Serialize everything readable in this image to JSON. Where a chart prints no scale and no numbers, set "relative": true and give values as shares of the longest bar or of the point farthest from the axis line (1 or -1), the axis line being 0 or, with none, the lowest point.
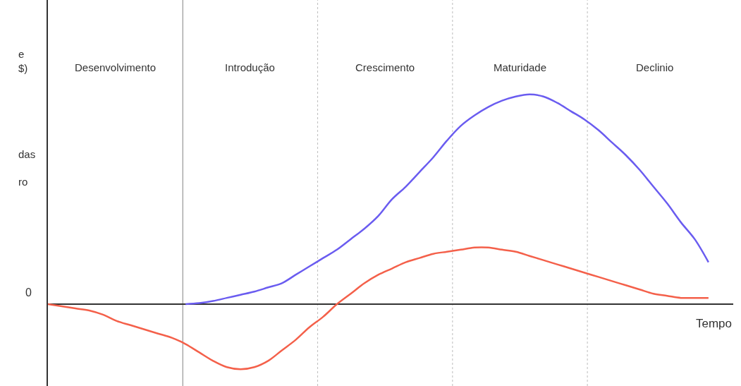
{
  "chart_data": {
    "type": "line",
    "relative": true,
    "xlabel": "Tempo",
    "categories": [
      null,
      null,
      null,
      null,
      null,
      null,
      null,
      null,
      null,
      null,
      null,
      null,
      null,
      null,
      null,
      null,
      null,
      null,
      null,
      null,
      null,
      null,
      null,
      null,
      null,
      null,
      null,
      null,
      null,
      null,
      null,
      null,
      null,
      null,
      null,
      null,
      null,
      null,
      null,
      null,
      null,
      null,
      null,
      null,
      null,
      null,
      null,
      null,
      null
    ],
    "series": [
      {
        "color": "#6a5cf0",
        "values": [
          null,
          null,
          null,
          null,
          null,
          null,
          null,
          null,
          null,
          null,
          0,
          0.005,
          0.015,
          0.03,
          0.045,
          0.06,
          0.08,
          0.1,
          0.14,
          0.18,
          0.22,
          0.26,
          0.31,
          0.36,
          0.42,
          0.5,
          0.56,
          0.63,
          0.7,
          0.78,
          0.85,
          0.9,
          0.94,
          0.97,
          0.99,
          1,
          0.99,
          0.96,
          0.92,
          0.88,
          0.83,
          0.77,
          0.71,
          0.64,
          0.56,
          0.48,
          0.39,
          0.31,
          0.2
        ]
      },
      {
        "color": "#f4604a",
        "values": [
          0,
          -0.01,
          -0.02,
          -0.03,
          -0.05,
          -0.08,
          -0.1,
          -0.12,
          -0.14,
          -0.16,
          -0.19,
          -0.23,
          -0.27,
          -0.3,
          -0.31,
          -0.3,
          -0.27,
          -0.22,
          -0.17,
          -0.11,
          -0.06,
          0,
          0.05,
          0.1,
          0.14,
          0.17,
          0.2,
          0.22,
          0.24,
          0.25,
          0.26,
          0.27,
          0.27,
          0.26,
          0.25,
          0.23,
          0.21,
          0.19,
          0.17,
          0.15,
          0.13,
          0.11,
          0.09,
          0.07,
          0.05,
          0.04,
          0.03,
          0.03,
          0.03
        ]
      }
    ],
    "annotations": [
      "Desenvolvimento",
      "Introdução",
      "Crescimento",
      "Maturidade",
      "Declinio",
      "e\n$)",
      "das",
      "ro",
      "0"
    ],
    "grid": "x",
    "marker": "none",
    "line_style": "solid"
  }
}
